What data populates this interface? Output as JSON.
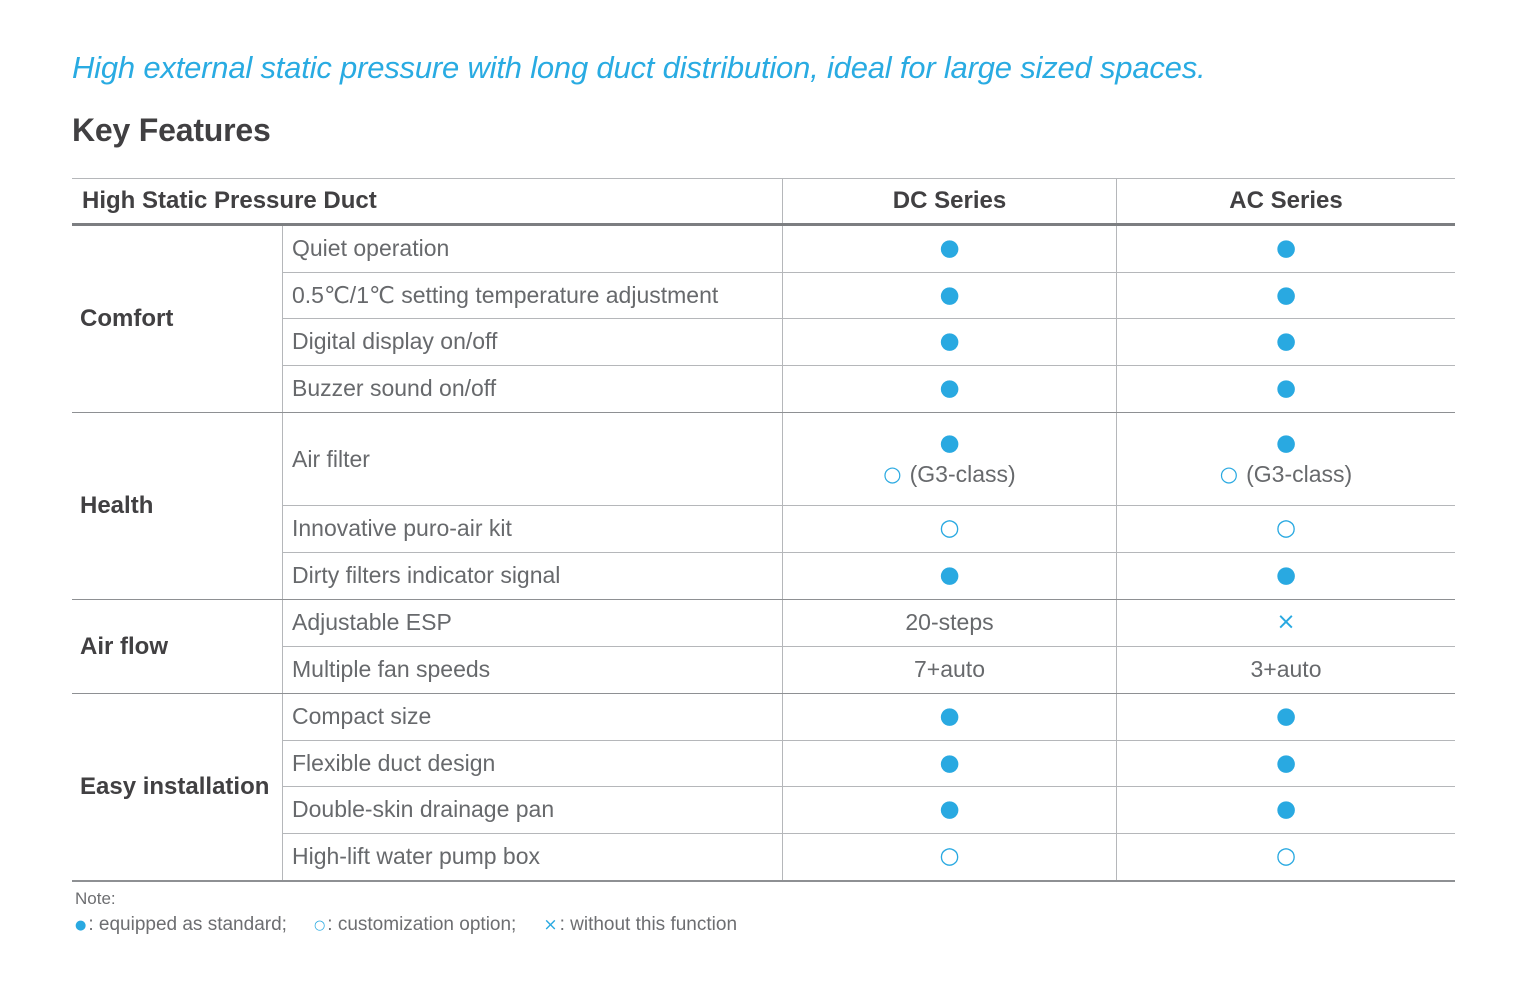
{
  "page": {
    "tagline": "High external static pressure with long duct distribution, ideal for large sized spaces.",
    "heading": "Key Features"
  },
  "colors": {
    "accent_blue": "#29a9e1",
    "tagline_blue": "#29abe2",
    "heading_text": "#414042",
    "body_text": "#67696c"
  },
  "table": {
    "header": {
      "product": "High Static Pressure Duct",
      "dc": "DC Series",
      "ac": "AC Series"
    },
    "sections": [
      {
        "category": "Comfort",
        "rows": [
          {
            "feature": "Quiet operation",
            "dc": {
              "mark": "●"
            },
            "ac": {
              "mark": "●"
            }
          },
          {
            "feature": "0.5℃/1℃ setting temperature adjustment",
            "dc": {
              "mark": "●"
            },
            "ac": {
              "mark": "●"
            }
          },
          {
            "feature": "Digital display on/off",
            "dc": {
              "mark": "●"
            },
            "ac": {
              "mark": "●"
            }
          },
          {
            "feature": "Buzzer sound on/off",
            "dc": {
              "mark": "●"
            },
            "ac": {
              "mark": "●"
            }
          }
        ]
      },
      {
        "category": "Health",
        "rows": [
          {
            "feature": "Air filter",
            "dc": {
              "mark": "●",
              "sub_mark": "○",
              "sub_text": "(G3-class)"
            },
            "ac": {
              "mark": "●",
              "sub_mark": "○",
              "sub_text": "(G3-class)"
            }
          },
          {
            "feature": "Innovative puro-air kit",
            "dc": {
              "mark": "○"
            },
            "ac": {
              "mark": "○"
            }
          },
          {
            "feature": "Dirty filters indicator signal",
            "dc": {
              "mark": "●"
            },
            "ac": {
              "mark": "●"
            }
          }
        ]
      },
      {
        "category": "Air flow",
        "rows": [
          {
            "feature": "Adjustable ESP",
            "dc": {
              "text": "20-steps"
            },
            "ac": {
              "mark": "×"
            }
          },
          {
            "feature": "Multiple fan speeds",
            "dc": {
              "text": "7+auto"
            },
            "ac": {
              "text": "3+auto"
            }
          }
        ]
      },
      {
        "category": "Easy installation",
        "rows": [
          {
            "feature": "Compact size",
            "dc": {
              "mark": "●"
            },
            "ac": {
              "mark": "●"
            }
          },
          {
            "feature": "Flexible duct design",
            "dc": {
              "mark": "●"
            },
            "ac": {
              "mark": "●"
            }
          },
          {
            "feature": "Double-skin drainage pan",
            "dc": {
              "mark": "●"
            },
            "ac": {
              "mark": "●"
            }
          },
          {
            "feature": "High-lift water pump box",
            "dc": {
              "mark": "○"
            },
            "ac": {
              "mark": "○"
            }
          }
        ]
      }
    ]
  },
  "note": {
    "label": "Note:",
    "items": [
      {
        "symbol": "●",
        "label": ": equipped as standard;"
      },
      {
        "symbol": "○",
        "label": ": customization option;"
      },
      {
        "symbol": "×",
        "label": ": without this function"
      }
    ]
  }
}
